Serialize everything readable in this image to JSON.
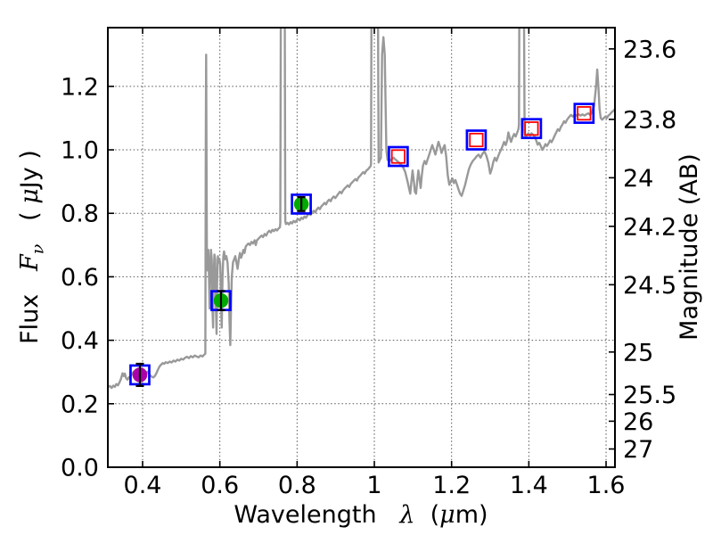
{
  "labels": {
    "flux_word": "Flux",
    "flux_symbol": "F",
    "flux_sub": "ν",
    "flux_unit_open": "( ",
    "flux_unit_mu": "μ",
    "flux_unit_close": "Jy )",
    "x_word": "Wavelength",
    "x_symbol": "λ",
    "x_unit_open": "(",
    "x_unit_mu": "μ",
    "x_unit_close": "m)",
    "y_right": "Magnitude (AB)"
  },
  "chart_data": {
    "type": "line",
    "title": "",
    "xlabel": "Wavelength λ (μm)",
    "ylabel_left": "Flux Fν ( μJy )",
    "ylabel_right": "Magnitude (AB)",
    "xlim": [
      0.31,
      1.623
    ],
    "ylim": [
      0,
      1.385
    ],
    "grid": "dotted, on major x and left-y ticks",
    "legend": "none",
    "colors": {
      "spectrum": "#999999",
      "square_marker": "#0000ff",
      "inner_square_marker": "#ff0000",
      "green_point": "#00aa00",
      "magenta_point": "#aa00aa",
      "errorbar": "#000000",
      "axes": "#000000"
    },
    "x_ticks": [
      {
        "v": 0.4,
        "label": "0.4"
      },
      {
        "v": 0.6,
        "label": "0.6"
      },
      {
        "v": 0.8,
        "label": "0.8"
      },
      {
        "v": 1.0,
        "label": "1"
      },
      {
        "v": 1.2,
        "label": "1.2"
      },
      {
        "v": 1.4,
        "label": "1.4"
      },
      {
        "v": 1.6,
        "label": "1.6"
      }
    ],
    "y_ticks_left": [
      {
        "v": 0.0,
        "label": "0.0"
      },
      {
        "v": 0.2,
        "label": "0.2"
      },
      {
        "v": 0.4,
        "label": "0.4"
      },
      {
        "v": 0.6,
        "label": "0.6"
      },
      {
        "v": 0.8,
        "label": "0.8"
      },
      {
        "v": 1.0,
        "label": "1.0"
      },
      {
        "v": 1.2,
        "label": "1.2"
      }
    ],
    "y_ticks_right": [
      {
        "flux": 1.318,
        "label": "23.6"
      },
      {
        "flux": 1.096,
        "label": "23.8"
      },
      {
        "flux": 0.912,
        "label": "24"
      },
      {
        "flux": 0.759,
        "label": "24.2"
      },
      {
        "flux": 0.575,
        "label": "24.5"
      },
      {
        "flux": 0.363,
        "label": "25"
      },
      {
        "flux": 0.229,
        "label": "25.5"
      },
      {
        "flux": 0.145,
        "label": "26"
      },
      {
        "flux": 0.0575,
        "label": "27"
      }
    ],
    "photometry_filled": [
      {
        "x": 0.393,
        "y": 0.291,
        "yerr": 0.035,
        "color": "#aa00aa"
      },
      {
        "x": 0.603,
        "y": 0.525,
        "yerr": 0.03,
        "color": "#00aa00"
      },
      {
        "x": 0.811,
        "y": 0.829,
        "yerr": 0.022,
        "color": "#00aa00"
      }
    ],
    "photometry_open": [
      {
        "x": 1.062,
        "y": 0.979
      },
      {
        "x": 1.264,
        "y": 1.031
      },
      {
        "x": 1.407,
        "y": 1.067
      },
      {
        "x": 1.543,
        "y": 1.115
      }
    ],
    "spectrum": [
      [
        0.31,
        0.253
      ],
      [
        0.315,
        0.256
      ],
      [
        0.32,
        0.25
      ],
      [
        0.324,
        0.257
      ],
      [
        0.328,
        0.253
      ],
      [
        0.332,
        0.262
      ],
      [
        0.336,
        0.258
      ],
      [
        0.34,
        0.267
      ],
      [
        0.344,
        0.278
      ],
      [
        0.348,
        0.296
      ],
      [
        0.351,
        0.287
      ],
      [
        0.354,
        0.295
      ],
      [
        0.357,
        0.281
      ],
      [
        0.361,
        0.276
      ],
      [
        0.365,
        0.284
      ],
      [
        0.369,
        0.287
      ],
      [
        0.373,
        0.295
      ],
      [
        0.377,
        0.301
      ],
      [
        0.38,
        0.293
      ],
      [
        0.384,
        0.288
      ],
      [
        0.388,
        0.285
      ],
      [
        0.392,
        0.29
      ],
      [
        0.396,
        0.287
      ],
      [
        0.4,
        0.292
      ],
      [
        0.404,
        0.297
      ],
      [
        0.408,
        0.294
      ],
      [
        0.412,
        0.301
      ],
      [
        0.416,
        0.295
      ],
      [
        0.42,
        0.289
      ],
      [
        0.424,
        0.285
      ],
      [
        0.428,
        0.283
      ],
      [
        0.432,
        0.288
      ],
      [
        0.436,
        0.297
      ],
      [
        0.44,
        0.308
      ],
      [
        0.444,
        0.318
      ],
      [
        0.448,
        0.323
      ],
      [
        0.452,
        0.328
      ],
      [
        0.456,
        0.326
      ],
      [
        0.46,
        0.331
      ],
      [
        0.465,
        0.328
      ],
      [
        0.47,
        0.333
      ],
      [
        0.475,
        0.33
      ],
      [
        0.48,
        0.336
      ],
      [
        0.485,
        0.333
      ],
      [
        0.49,
        0.339
      ],
      [
        0.495,
        0.336
      ],
      [
        0.5,
        0.342
      ],
      [
        0.505,
        0.339
      ],
      [
        0.51,
        0.345
      ],
      [
        0.515,
        0.348
      ],
      [
        0.52,
        0.344
      ],
      [
        0.525,
        0.35
      ],
      [
        0.53,
        0.346
      ],
      [
        0.535,
        0.352
      ],
      [
        0.54,
        0.349
      ],
      [
        0.545,
        0.346
      ],
      [
        0.55,
        0.352
      ],
      [
        0.555,
        0.349
      ],
      [
        0.559,
        0.354
      ],
      [
        0.5625,
        0.358
      ],
      [
        0.5635,
        1.02
      ],
      [
        0.5645,
        1.3
      ],
      [
        0.5655,
        1.0
      ],
      [
        0.5665,
        0.62
      ],
      [
        0.568,
        0.655
      ],
      [
        0.57,
        0.685
      ],
      [
        0.572,
        0.6
      ],
      [
        0.5735,
        0.5
      ],
      [
        0.575,
        0.63
      ],
      [
        0.577,
        0.685
      ],
      [
        0.579,
        0.655
      ],
      [
        0.581,
        0.5
      ],
      [
        0.5825,
        0.44
      ],
      [
        0.584,
        0.6
      ],
      [
        0.586,
        0.67
      ],
      [
        0.588,
        0.655
      ],
      [
        0.59,
        0.5
      ],
      [
        0.5915,
        0.42
      ],
      [
        0.593,
        0.58
      ],
      [
        0.595,
        0.665
      ],
      [
        0.597,
        0.645
      ],
      [
        0.599,
        0.655
      ],
      [
        0.601,
        0.64
      ],
      [
        0.603,
        0.52
      ],
      [
        0.605,
        0.44
      ],
      [
        0.607,
        0.6
      ],
      [
        0.609,
        0.665
      ],
      [
        0.611,
        0.68
      ],
      [
        0.614,
        0.655
      ],
      [
        0.617,
        0.665
      ],
      [
        0.62,
        0.645
      ],
      [
        0.623,
        0.58
      ],
      [
        0.625,
        0.46
      ],
      [
        0.627,
        0.385
      ],
      [
        0.629,
        0.5
      ],
      [
        0.631,
        0.6
      ],
      [
        0.634,
        0.645
      ],
      [
        0.637,
        0.655
      ],
      [
        0.64,
        0.665
      ],
      [
        0.643,
        0.645
      ],
      [
        0.646,
        0.625
      ],
      [
        0.649,
        0.655
      ],
      [
        0.652,
        0.675
      ],
      [
        0.655,
        0.66
      ],
      [
        0.658,
        0.67
      ],
      [
        0.661,
        0.685
      ],
      [
        0.664,
        0.675
      ],
      [
        0.667,
        0.695
      ],
      [
        0.67,
        0.7
      ],
      [
        0.674,
        0.705
      ],
      [
        0.678,
        0.7
      ],
      [
        0.682,
        0.71
      ],
      [
        0.686,
        0.705
      ],
      [
        0.69,
        0.715
      ],
      [
        0.693,
        0.7
      ],
      [
        0.696,
        0.715
      ],
      [
        0.7,
        0.72
      ],
      [
        0.704,
        0.725
      ],
      [
        0.708,
        0.73
      ],
      [
        0.712,
        0.725
      ],
      [
        0.716,
        0.735
      ],
      [
        0.72,
        0.73
      ],
      [
        0.724,
        0.74
      ],
      [
        0.728,
        0.745
      ],
      [
        0.732,
        0.74
      ],
      [
        0.736,
        0.748
      ],
      [
        0.74,
        0.744
      ],
      [
        0.744,
        0.75
      ],
      [
        0.748,
        0.746
      ],
      [
        0.752,
        0.752
      ],
      [
        0.7555,
        0.756
      ],
      [
        0.7565,
        0.77
      ],
      [
        0.758,
        1.45
      ],
      [
        0.768,
        1.45
      ],
      [
        0.7695,
        0.775
      ],
      [
        0.771,
        0.766
      ],
      [
        0.775,
        0.77
      ],
      [
        0.779,
        0.765
      ],
      [
        0.783,
        0.772
      ],
      [
        0.787,
        0.768
      ],
      [
        0.791,
        0.776
      ],
      [
        0.795,
        0.772
      ],
      [
        0.799,
        0.778
      ],
      [
        0.803,
        0.782
      ],
      [
        0.807,
        0.778
      ],
      [
        0.811,
        0.786
      ],
      [
        0.815,
        0.782
      ],
      [
        0.819,
        0.79
      ],
      [
        0.823,
        0.786
      ],
      [
        0.827,
        0.794
      ],
      [
        0.831,
        0.8
      ],
      [
        0.835,
        0.795
      ],
      [
        0.839,
        0.803
      ],
      [
        0.843,
        0.808
      ],
      [
        0.847,
        0.803
      ],
      [
        0.851,
        0.812
      ],
      [
        0.855,
        0.818
      ],
      [
        0.859,
        0.813
      ],
      [
        0.863,
        0.822
      ],
      [
        0.867,
        0.827
      ],
      [
        0.871,
        0.833
      ],
      [
        0.875,
        0.828
      ],
      [
        0.879,
        0.838
      ],
      [
        0.883,
        0.843
      ],
      [
        0.887,
        0.838
      ],
      [
        0.891,
        0.848
      ],
      [
        0.895,
        0.853
      ],
      [
        0.899,
        0.848
      ],
      [
        0.903,
        0.855
      ],
      [
        0.907,
        0.862
      ],
      [
        0.911,
        0.868
      ],
      [
        0.915,
        0.863
      ],
      [
        0.919,
        0.872
      ],
      [
        0.923,
        0.878
      ],
      [
        0.927,
        0.883
      ],
      [
        0.931,
        0.888
      ],
      [
        0.935,
        0.883
      ],
      [
        0.939,
        0.893
      ],
      [
        0.943,
        0.898
      ],
      [
        0.947,
        0.903
      ],
      [
        0.951,
        0.908
      ],
      [
        0.955,
        0.903
      ],
      [
        0.959,
        0.913
      ],
      [
        0.963,
        0.918
      ],
      [
        0.967,
        0.924
      ],
      [
        0.971,
        0.93
      ],
      [
        0.975,
        0.925
      ],
      [
        0.979,
        0.934
      ],
      [
        0.983,
        0.938
      ],
      [
        0.987,
        0.944
      ],
      [
        0.99,
        0.948
      ],
      [
        0.9915,
        0.955
      ],
      [
        0.9925,
        1.45
      ],
      [
        1.0095,
        1.45
      ],
      [
        1.011,
        0.96
      ],
      [
        1.014,
        0.968
      ],
      [
        1.017,
        0.975
      ],
      [
        1.02,
        1.3
      ],
      [
        1.0235,
        1.355
      ],
      [
        1.027,
        1.3
      ],
      [
        1.031,
        1.0
      ],
      [
        1.034,
        0.968
      ],
      [
        1.038,
        0.972
      ],
      [
        1.042,
        0.966
      ],
      [
        1.046,
        0.972
      ],
      [
        1.05,
        0.975
      ],
      [
        1.054,
        0.97
      ],
      [
        1.058,
        0.966
      ],
      [
        1.062,
        0.962
      ],
      [
        1.066,
        0.957
      ],
      [
        1.07,
        0.952
      ],
      [
        1.075,
        0.944
      ],
      [
        1.08,
        0.93
      ],
      [
        1.085,
        0.905
      ],
      [
        1.09,
        0.878
      ],
      [
        1.093,
        0.862
      ],
      [
        1.096,
        0.9
      ],
      [
        1.099,
        0.935
      ],
      [
        1.102,
        0.905
      ],
      [
        1.105,
        0.868
      ],
      [
        1.108,
        0.862
      ],
      [
        1.111,
        0.9
      ],
      [
        1.114,
        0.935
      ],
      [
        1.117,
        0.91
      ],
      [
        1.12,
        0.88
      ],
      [
        1.123,
        0.92
      ],
      [
        1.126,
        0.95
      ],
      [
        1.13,
        0.965
      ],
      [
        1.134,
        0.955
      ],
      [
        1.138,
        0.97
      ],
      [
        1.142,
        0.985
      ],
      [
        1.146,
        1.0
      ],
      [
        1.15,
        1.015
      ],
      [
        1.154,
        1.0
      ],
      [
        1.158,
        0.985
      ],
      [
        1.162,
        1.005
      ],
      [
        1.166,
        1.025
      ],
      [
        1.17,
        1.01
      ],
      [
        1.174,
        0.99
      ],
      [
        1.178,
        1.005
      ],
      [
        1.182,
        1.015
      ],
      [
        1.186,
        0.98
      ],
      [
        1.19,
        0.92
      ],
      [
        1.194,
        0.89
      ],
      [
        1.198,
        0.9
      ],
      [
        1.202,
        0.91
      ],
      [
        1.206,
        0.895
      ],
      [
        1.21,
        0.905
      ],
      [
        1.214,
        0.89
      ],
      [
        1.218,
        0.875
      ],
      [
        1.222,
        0.862
      ],
      [
        1.226,
        0.855
      ],
      [
        1.23,
        0.87
      ],
      [
        1.235,
        0.89
      ],
      [
        1.24,
        0.915
      ],
      [
        1.245,
        0.94
      ],
      [
        1.25,
        0.955
      ],
      [
        1.255,
        0.965
      ],
      [
        1.26,
        0.972
      ],
      [
        1.265,
        0.98
      ],
      [
        1.27,
        0.985
      ],
      [
        1.275,
        0.975
      ],
      [
        1.28,
        0.988
      ],
      [
        1.285,
        0.995
      ],
      [
        1.29,
        0.982
      ],
      [
        1.295,
        0.96
      ],
      [
        1.3,
        0.925
      ],
      [
        1.304,
        0.94
      ],
      [
        1.308,
        0.962
      ],
      [
        1.312,
        0.975
      ],
      [
        1.316,
        0.965
      ],
      [
        1.32,
        0.978
      ],
      [
        1.324,
        0.99
      ],
      [
        1.328,
        1.0
      ],
      [
        1.332,
        1.012
      ],
      [
        1.336,
        1.025
      ],
      [
        1.34,
        1.015
      ],
      [
        1.344,
        1.03
      ],
      [
        1.347,
        1.055
      ],
      [
        1.35,
        1.04
      ],
      [
        1.354,
        1.025
      ],
      [
        1.358,
        1.04
      ],
      [
        1.362,
        1.05
      ],
      [
        1.366,
        1.042
      ],
      [
        1.37,
        1.055
      ],
      [
        1.373,
        1.065
      ],
      [
        1.3745,
        1.08
      ],
      [
        1.3755,
        1.45
      ],
      [
        1.3875,
        1.45
      ],
      [
        1.389,
        1.06
      ],
      [
        1.391,
        1.038
      ],
      [
        1.395,
        1.046
      ],
      [
        1.399,
        1.052
      ],
      [
        1.403,
        1.045
      ],
      [
        1.407,
        1.052
      ],
      [
        1.411,
        1.048
      ],
      [
        1.415,
        1.042
      ],
      [
        1.419,
        1.03
      ],
      [
        1.423,
        1.016
      ],
      [
        1.427,
        1.022
      ],
      [
        1.431,
        1.012
      ],
      [
        1.435,
        1.0
      ],
      [
        1.439,
        1.008
      ],
      [
        1.443,
        1.018
      ],
      [
        1.447,
        1.012
      ],
      [
        1.451,
        1.02
      ],
      [
        1.455,
        1.03
      ],
      [
        1.459,
        1.024
      ],
      [
        1.463,
        1.034
      ],
      [
        1.467,
        1.045
      ],
      [
        1.471,
        1.055
      ],
      [
        1.475,
        1.065
      ],
      [
        1.479,
        1.06
      ],
      [
        1.483,
        1.072
      ],
      [
        1.487,
        1.08
      ],
      [
        1.491,
        1.09
      ],
      [
        1.495,
        1.085
      ],
      [
        1.499,
        1.095
      ],
      [
        1.504,
        1.103
      ],
      [
        1.509,
        1.11
      ],
      [
        1.514,
        1.105
      ],
      [
        1.519,
        1.112
      ],
      [
        1.524,
        1.108
      ],
      [
        1.529,
        1.112
      ],
      [
        1.534,
        1.108
      ],
      [
        1.539,
        1.112
      ],
      [
        1.544,
        1.108
      ],
      [
        1.549,
        1.112
      ],
      [
        1.554,
        1.115
      ],
      [
        1.559,
        1.11
      ],
      [
        1.564,
        1.12
      ],
      [
        1.569,
        1.14
      ],
      [
        1.574,
        1.2
      ],
      [
        1.577,
        1.253
      ],
      [
        1.58,
        1.2
      ],
      [
        1.583,
        1.13
      ],
      [
        1.586,
        1.1
      ],
      [
        1.59,
        1.095
      ],
      [
        1.594,
        1.1
      ],
      [
        1.598,
        1.105
      ],
      [
        1.602,
        1.1
      ],
      [
        1.606,
        1.108
      ],
      [
        1.61,
        1.112
      ],
      [
        1.614,
        1.118
      ],
      [
        1.618,
        1.122
      ],
      [
        1.623,
        1.128
      ]
    ]
  }
}
